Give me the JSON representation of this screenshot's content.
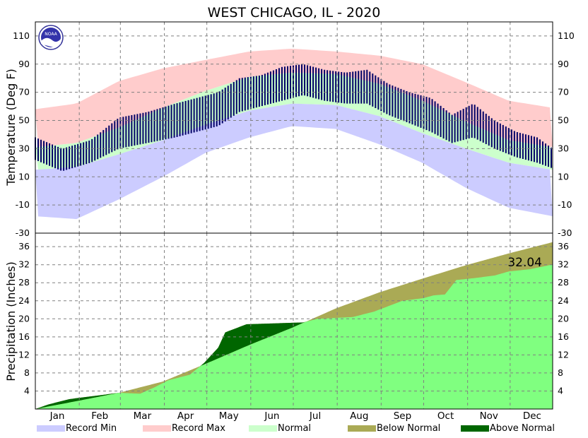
{
  "chart_data": [
    {
      "type": "temperature",
      "title": "WEST CHICAGO, IL - 2020",
      "ylabel": "Temperature (Deg F)",
      "ylim": [
        -30,
        120
      ],
      "yticks": [
        -30,
        -10,
        10,
        30,
        50,
        70,
        90,
        110
      ],
      "months": [
        "Jan",
        "Feb",
        "Mar",
        "Apr",
        "May",
        "Jun",
        "Jul",
        "Aug",
        "Sep",
        "Oct",
        "Nov",
        "Dec"
      ],
      "normal_high": [
        {
          "doy": 1,
          "v": 31
        },
        {
          "doy": 30,
          "v": 34
        },
        {
          "doy": 60,
          "v": 45
        },
        {
          "doy": 91,
          "v": 59
        },
        {
          "doy": 121,
          "v": 71
        },
        {
          "doy": 152,
          "v": 81
        },
        {
          "doy": 182,
          "v": 84
        },
        {
          "doy": 213,
          "v": 83
        },
        {
          "doy": 244,
          "v": 76
        },
        {
          "doy": 274,
          "v": 64
        },
        {
          "doy": 305,
          "v": 49
        },
        {
          "doy": 335,
          "v": 36
        },
        {
          "doy": 366,
          "v": 31
        }
      ],
      "normal_low": [
        {
          "doy": 1,
          "v": 15
        },
        {
          "doy": 30,
          "v": 17
        },
        {
          "doy": 60,
          "v": 26
        },
        {
          "doy": 91,
          "v": 36
        },
        {
          "doy": 121,
          "v": 47
        },
        {
          "doy": 152,
          "v": 57
        },
        {
          "doy": 182,
          "v": 62
        },
        {
          "doy": 213,
          "v": 61
        },
        {
          "doy": 244,
          "v": 53
        },
        {
          "doy": 274,
          "v": 41
        },
        {
          "doy": 305,
          "v": 30
        },
        {
          "doy": 335,
          "v": 20
        },
        {
          "doy": 366,
          "v": 15
        }
      ],
      "record_max": [
        {
          "doy": 1,
          "v": 58
        },
        {
          "doy": 30,
          "v": 62
        },
        {
          "doy": 60,
          "v": 78
        },
        {
          "doy": 91,
          "v": 87
        },
        {
          "doy": 121,
          "v": 93
        },
        {
          "doy": 152,
          "v": 99
        },
        {
          "doy": 182,
          "v": 101
        },
        {
          "doy": 213,
          "v": 99
        },
        {
          "doy": 244,
          "v": 96
        },
        {
          "doy": 274,
          "v": 90
        },
        {
          "doy": 305,
          "v": 77
        },
        {
          "doy": 335,
          "v": 64
        },
        {
          "doy": 366,
          "v": 59
        }
      ],
      "record_min": [
        {
          "doy": 1,
          "v": -18
        },
        {
          "doy": 30,
          "v": -20
        },
        {
          "doy": 60,
          "v": -6
        },
        {
          "doy": 91,
          "v": 10
        },
        {
          "doy": 121,
          "v": 27
        },
        {
          "doy": 152,
          "v": 38
        },
        {
          "doy": 182,
          "v": 46
        },
        {
          "doy": 213,
          "v": 44
        },
        {
          "doy": 244,
          "v": 33
        },
        {
          "doy": 274,
          "v": 20
        },
        {
          "doy": 305,
          "v": 2
        },
        {
          "doy": 335,
          "v": -12
        },
        {
          "doy": 366,
          "v": -18
        }
      ],
      "actual_high": [
        {
          "doy": 1,
          "v": 38
        },
        {
          "doy": 20,
          "v": 30
        },
        {
          "doy": 40,
          "v": 36
        },
        {
          "doy": 60,
          "v": 52
        },
        {
          "doy": 80,
          "v": 56
        },
        {
          "doy": 100,
          "v": 62
        },
        {
          "doy": 115,
          "v": 66
        },
        {
          "doy": 130,
          "v": 70
        },
        {
          "doy": 145,
          "v": 80
        },
        {
          "doy": 160,
          "v": 82
        },
        {
          "doy": 175,
          "v": 88
        },
        {
          "doy": 190,
          "v": 90
        },
        {
          "doy": 205,
          "v": 86
        },
        {
          "doy": 220,
          "v": 84
        },
        {
          "doy": 235,
          "v": 86
        },
        {
          "doy": 250,
          "v": 76
        },
        {
          "doy": 265,
          "v": 70
        },
        {
          "doy": 280,
          "v": 66
        },
        {
          "doy": 295,
          "v": 54
        },
        {
          "doy": 310,
          "v": 62
        },
        {
          "doy": 325,
          "v": 50
        },
        {
          "doy": 340,
          "v": 42
        },
        {
          "doy": 355,
          "v": 38
        },
        {
          "doy": 366,
          "v": 30
        }
      ],
      "actual_low": [
        {
          "doy": 1,
          "v": 22
        },
        {
          "doy": 20,
          "v": 14
        },
        {
          "doy": 40,
          "v": 20
        },
        {
          "doy": 60,
          "v": 30
        },
        {
          "doy": 80,
          "v": 34
        },
        {
          "doy": 100,
          "v": 38
        },
        {
          "doy": 115,
          "v": 42
        },
        {
          "doy": 130,
          "v": 46
        },
        {
          "doy": 145,
          "v": 56
        },
        {
          "doy": 160,
          "v": 60
        },
        {
          "doy": 175,
          "v": 64
        },
        {
          "doy": 190,
          "v": 68
        },
        {
          "doy": 205,
          "v": 64
        },
        {
          "doy": 220,
          "v": 62
        },
        {
          "doy": 235,
          "v": 62
        },
        {
          "doy": 250,
          "v": 54
        },
        {
          "doy": 265,
          "v": 48
        },
        {
          "doy": 280,
          "v": 42
        },
        {
          "doy": 295,
          "v": 34
        },
        {
          "doy": 310,
          "v": 38
        },
        {
          "doy": 325,
          "v": 30
        },
        {
          "doy": 340,
          "v": 24
        },
        {
          "doy": 355,
          "v": 20
        },
        {
          "doy": 366,
          "v": 16
        }
      ]
    },
    {
      "type": "area",
      "ylabel": "Precipitation (Inches)",
      "ylim": [
        0,
        39
      ],
      "yticks": [
        4,
        8,
        12,
        16,
        20,
        24,
        28,
        32,
        36
      ],
      "annotation": "32.04",
      "normal_cumulative": [
        {
          "doy": 1,
          "v": 0
        },
        {
          "doy": 31,
          "v": 1.8
        },
        {
          "doy": 60,
          "v": 3.6
        },
        {
          "doy": 91,
          "v": 6.1
        },
        {
          "doy": 121,
          "v": 10.0
        },
        {
          "doy": 152,
          "v": 14.2
        },
        {
          "doy": 182,
          "v": 18.0
        },
        {
          "doy": 213,
          "v": 22.3
        },
        {
          "doy": 244,
          "v": 25.9
        },
        {
          "doy": 274,
          "v": 28.9
        },
        {
          "doy": 305,
          "v": 31.9
        },
        {
          "doy": 335,
          "v": 34.5
        },
        {
          "doy": 366,
          "v": 37.0
        }
      ],
      "actual_cumulative": [
        {
          "doy": 1,
          "v": 0
        },
        {
          "doy": 10,
          "v": 1.0
        },
        {
          "doy": 25,
          "v": 2.2
        },
        {
          "doy": 45,
          "v": 3.0
        },
        {
          "doy": 60,
          "v": 3.6
        },
        {
          "doy": 75,
          "v": 3.4
        },
        {
          "doy": 85,
          "v": 4.8
        },
        {
          "doy": 95,
          "v": 6.4
        },
        {
          "doy": 110,
          "v": 7.6
        },
        {
          "doy": 120,
          "v": 10.2
        },
        {
          "doy": 130,
          "v": 13.6
        },
        {
          "doy": 135,
          "v": 17.0
        },
        {
          "doy": 150,
          "v": 18.8
        },
        {
          "doy": 170,
          "v": 19.0
        },
        {
          "doy": 190,
          "v": 19.2
        },
        {
          "doy": 200,
          "v": 20.0
        },
        {
          "doy": 225,
          "v": 20.4
        },
        {
          "doy": 240,
          "v": 21.6
        },
        {
          "doy": 260,
          "v": 24.0
        },
        {
          "doy": 275,
          "v": 24.6
        },
        {
          "doy": 282,
          "v": 25.2
        },
        {
          "doy": 290,
          "v": 25.4
        },
        {
          "doy": 298,
          "v": 28.6
        },
        {
          "doy": 310,
          "v": 29.0
        },
        {
          "doy": 325,
          "v": 29.6
        },
        {
          "doy": 335,
          "v": 30.5
        },
        {
          "doy": 350,
          "v": 31.0
        },
        {
          "doy": 366,
          "v": 32.04
        }
      ]
    }
  ],
  "legend": [
    {
      "label": "Record Min",
      "color": "#ccccff"
    },
    {
      "label": "Record Max",
      "color": "#ffcccc"
    },
    {
      "label": "Normal",
      "color": "#ccffcc"
    },
    {
      "label": "Below Normal",
      "color": "#aaaa55"
    },
    {
      "label": "Above Normal",
      "color": "#006600"
    }
  ],
  "colors": {
    "actual_temp": "#000066",
    "actual_precip": "#80ff80",
    "grid": "#808080"
  },
  "logo_text": "NOAA"
}
